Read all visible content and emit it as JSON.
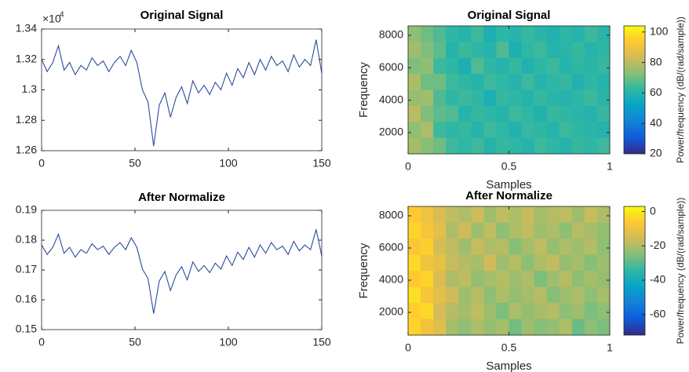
{
  "chart_data": [
    {
      "type": "line",
      "title": "Original Signal",
      "y_scale_base": "×10",
      "y_scale_power": "4",
      "x": [
        0,
        3,
        6,
        9,
        12,
        15,
        18,
        21,
        24,
        27,
        30,
        33,
        36,
        39,
        42,
        45,
        48,
        51,
        54,
        57,
        60,
        63,
        66,
        69,
        72,
        75,
        78,
        81,
        84,
        87,
        90,
        93,
        96,
        99,
        102,
        105,
        108,
        111,
        114,
        117,
        120,
        123,
        126,
        129,
        132,
        135,
        138,
        141,
        144,
        147,
        150
      ],
      "series": [
        {
          "color": "#2a4b9b",
          "values": [
            1.32,
            1.312,
            1.318,
            1.329,
            1.313,
            1.318,
            1.31,
            1.316,
            1.313,
            1.321,
            1.316,
            1.319,
            1.312,
            1.318,
            1.322,
            1.316,
            1.326,
            1.318,
            1.3,
            1.292,
            1.263,
            1.29,
            1.298,
            1.282,
            1.295,
            1.302,
            1.291,
            1.306,
            1.298,
            1.303,
            1.297,
            1.305,
            1.3,
            1.311,
            1.303,
            1.314,
            1.308,
            1.318,
            1.31,
            1.32,
            1.313,
            1.322,
            1.316,
            1.319,
            1.312,
            1.323,
            1.315,
            1.32,
            1.316,
            1.333,
            1.311
          ]
        }
      ],
      "xlim": [
        0,
        150
      ],
      "xticks": [
        0,
        50,
        100,
        150
      ],
      "ylim": [
        1.26,
        1.34
      ],
      "yticks": [
        1.26,
        1.28,
        1.3,
        1.32,
        1.34
      ]
    },
    {
      "type": "heatmap",
      "title": "Original Signal",
      "xlabel": "Samples",
      "ylabel": "Frequency",
      "colorbar_label": "Power/frequency (dB/(rad/sample))",
      "colormap": "parula",
      "xlim": [
        0,
        1
      ],
      "xticks": [
        0,
        0.5,
        1
      ],
      "ylim": [
        690,
        8580
      ],
      "yticks": [
        2000,
        4000,
        6000,
        8000
      ],
      "clim": [
        20,
        104
      ],
      "cticks": [
        20,
        40,
        60,
        80,
        100
      ],
      "z": [
        [
          74,
          70,
          66,
          62,
          60,
          64,
          58,
          62,
          60,
          63,
          61,
          59,
          62,
          60,
          64,
          61
        ],
        [
          76,
          72,
          68,
          60,
          64,
          62,
          60,
          66,
          58,
          62,
          64,
          60,
          61,
          63,
          60,
          62
        ],
        [
          72,
          74,
          64,
          62,
          58,
          66,
          62,
          60,
          63,
          59,
          62,
          64,
          60,
          62,
          61,
          63
        ],
        [
          78,
          70,
          70,
          64,
          62,
          60,
          64,
          62,
          60,
          64,
          60,
          62,
          63,
          59,
          62,
          60
        ],
        [
          75,
          76,
          66,
          62,
          64,
          62,
          58,
          63,
          62,
          60,
          63,
          61,
          60,
          62,
          64,
          61
        ],
        [
          80,
          72,
          68,
          66,
          60,
          63,
          62,
          60,
          64,
          62,
          59,
          63,
          62,
          61,
          60,
          63
        ],
        [
          74,
          78,
          64,
          62,
          63,
          60,
          64,
          62,
          59,
          63,
          62,
          60,
          64,
          62,
          61,
          60
        ],
        [
          77,
          73,
          70,
          64,
          62,
          64,
          60,
          63,
          62,
          60,
          64,
          62,
          60,
          63,
          62,
          64
        ]
      ]
    },
    {
      "type": "line",
      "title": "After Normalize",
      "x": [
        0,
        3,
        6,
        9,
        12,
        15,
        18,
        21,
        24,
        27,
        30,
        33,
        36,
        39,
        42,
        45,
        48,
        51,
        54,
        57,
        60,
        63,
        66,
        69,
        72,
        75,
        78,
        81,
        84,
        87,
        90,
        93,
        96,
        99,
        102,
        105,
        108,
        111,
        114,
        117,
        120,
        123,
        126,
        129,
        132,
        135,
        138,
        141,
        144,
        147,
        150
      ],
      "series": [
        {
          "color": "#2a4b9b",
          "values": [
            0.1784,
            0.1752,
            0.1776,
            0.182,
            0.1756,
            0.1776,
            0.1743,
            0.1768,
            0.1756,
            0.1788,
            0.1768,
            0.178,
            0.1752,
            0.1776,
            0.1792,
            0.1768,
            0.1808,
            0.1776,
            0.1703,
            0.1671,
            0.1554,
            0.1663,
            0.1695,
            0.1631,
            0.1683,
            0.1711,
            0.1667,
            0.1727,
            0.1695,
            0.1715,
            0.1691,
            0.1723,
            0.1703,
            0.1747,
            0.1715,
            0.176,
            0.1735,
            0.1776,
            0.1743,
            0.1784,
            0.1756,
            0.1792,
            0.1768,
            0.178,
            0.1752,
            0.1796,
            0.1764,
            0.1784,
            0.1768,
            0.1836,
            0.1747
          ]
        }
      ],
      "xlim": [
        0,
        150
      ],
      "xticks": [
        0,
        50,
        100,
        150
      ],
      "ylim": [
        0.15,
        0.19
      ],
      "yticks": [
        0.15,
        0.16,
        0.17,
        0.18,
        0.19
      ]
    },
    {
      "type": "heatmap",
      "title": "After Normalize",
      "xlabel": "Samples",
      "ylabel": "Frequency",
      "colorbar_label": "Power/frequency (dB/(rad/sample))",
      "colormap": "parula",
      "xlim": [
        0,
        1
      ],
      "xticks": [
        0,
        0.5,
        1
      ],
      "ylim": [
        585,
        8585
      ],
      "yticks": [
        2000,
        4000,
        6000,
        8000
      ],
      "clim": [
        -72,
        3
      ],
      "cticks": [
        -60,
        -40,
        -20,
        0
      ],
      "z": [
        [
          -6,
          -10,
          -14,
          -18,
          -20,
          -16,
          -22,
          -18,
          -20,
          -17,
          -21,
          -19,
          -18,
          -22,
          -17,
          -20
        ],
        [
          -4,
          -8,
          -12,
          -20,
          -16,
          -22,
          -18,
          -24,
          -20,
          -18,
          -22,
          -20,
          -24,
          -19,
          -21,
          -23
        ],
        [
          -7,
          -5,
          -15,
          -18,
          -22,
          -17,
          -20,
          -19,
          -25,
          -21,
          -18,
          -23,
          -20,
          -22,
          -19,
          -24
        ],
        [
          -3,
          -9,
          -11,
          -17,
          -19,
          -21,
          -16,
          -22,
          -19,
          -24,
          -20,
          -18,
          -23,
          -21,
          -25,
          -22
        ],
        [
          -6,
          -4,
          -14,
          -20,
          -18,
          -23,
          -21,
          -19,
          -22,
          -20,
          -26,
          -22,
          -19,
          -24,
          -21,
          -23
        ],
        [
          -2,
          -8,
          -12,
          -16,
          -22,
          -19,
          -24,
          -20,
          -23,
          -21,
          -19,
          -25,
          -22,
          -20,
          -24,
          -21
        ],
        [
          -5,
          -3,
          -15,
          -19,
          -21,
          -18,
          -22,
          -26,
          -20,
          -23,
          -21,
          -19,
          -24,
          -22,
          -26,
          -24
        ],
        [
          -4,
          -9,
          -13,
          -21,
          -24,
          -20,
          -23,
          -21,
          -27,
          -22,
          -25,
          -23,
          -20,
          -28,
          -24,
          -26
        ]
      ]
    }
  ]
}
